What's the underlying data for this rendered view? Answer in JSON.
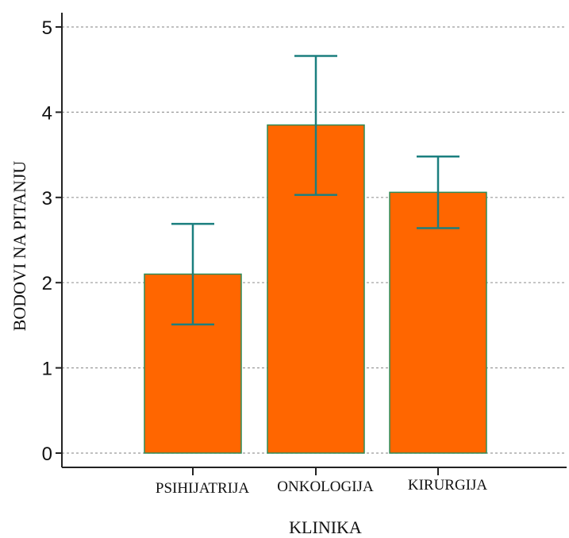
{
  "chart_data": {
    "type": "bar",
    "title": "",
    "xlabel": "KLINIKA",
    "ylabel": "BODOVI NA PITANJU",
    "categories": [
      "PSIHIJATRIJA",
      "ONKOLOGIJA",
      "KIRURGIJA"
    ],
    "series": [
      {
        "values": [
          2.1,
          3.85,
          3.06
        ],
        "error_low": [
          1.51,
          3.03,
          2.64
        ],
        "error_high": [
          2.69,
          4.66,
          3.48
        ]
      }
    ],
    "yticks": [
      "0",
      "1",
      "2",
      "3",
      "4",
      "5"
    ],
    "ylim": [
      0,
      5
    ],
    "grid": true,
    "legend": "none",
    "colors": {
      "bar_fill": "#ff6600",
      "bar_edge": "#2e8b57",
      "error_bar": "#1b7f7f",
      "grid": "#9a9a9a",
      "axis": "#222222"
    }
  }
}
